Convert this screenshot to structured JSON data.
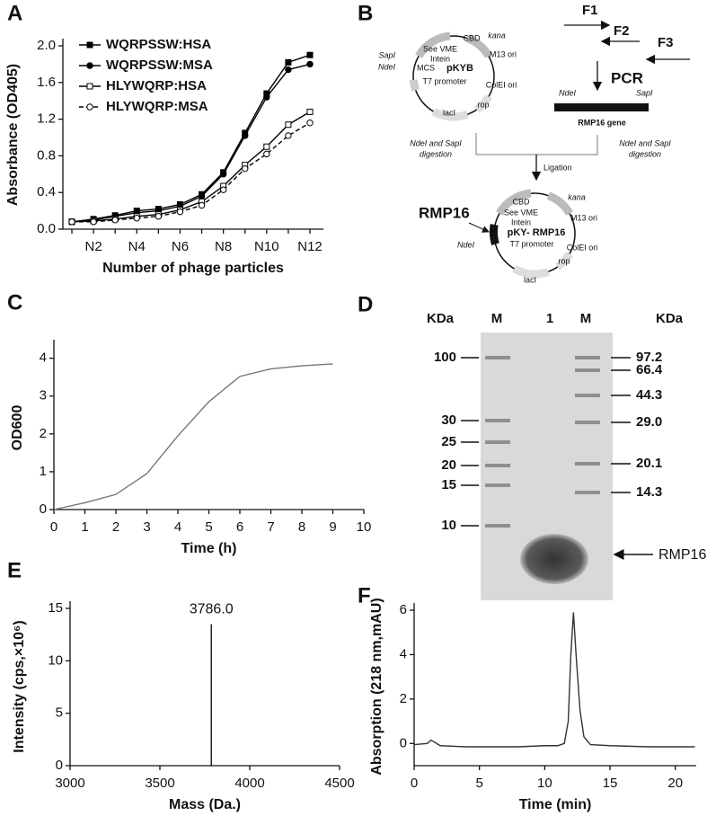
{
  "chart_data": [
    {
      "label": "A",
      "type": "line",
      "categories": [
        null,
        "N2",
        null,
        "N4",
        null,
        "N6",
        null,
        "N8",
        null,
        "N10",
        null,
        "N12"
      ],
      "series": [
        {
          "name": "WQRPSSW:HSA",
          "color": "#000000",
          "marker": "square",
          "filled": true,
          "dashed": false,
          "values": [
            0.08,
            0.11,
            0.15,
            0.2,
            0.22,
            0.27,
            0.38,
            0.62,
            1.05,
            1.48,
            1.82,
            1.9
          ]
        },
        {
          "name": "WQRPSSW:MSA",
          "color": "#000000",
          "marker": "circle",
          "filled": true,
          "dashed": false,
          "values": [
            0.08,
            0.1,
            0.14,
            0.18,
            0.2,
            0.25,
            0.36,
            0.6,
            1.02,
            1.44,
            1.74,
            1.8
          ]
        },
        {
          "name": "HLYWQRP:HSA",
          "color": "#000000",
          "marker": "square",
          "filled": false,
          "dashed": false,
          "values": [
            0.08,
            0.09,
            0.11,
            0.14,
            0.16,
            0.21,
            0.3,
            0.47,
            0.7,
            0.9,
            1.14,
            1.28
          ]
        },
        {
          "name": "HLYWQRP:MSA",
          "color": "#000000",
          "marker": "circle",
          "filled": false,
          "dashed": true,
          "values": [
            0.08,
            0.08,
            0.1,
            0.12,
            0.14,
            0.19,
            0.26,
            0.43,
            0.66,
            0.82,
            1.02,
            1.16
          ]
        }
      ],
      "ylim": [
        0,
        2
      ],
      "yticks": [
        {
          "value": 0,
          "label": "0.0"
        },
        0.4,
        0.8,
        1.2,
        1.6,
        {
          "value": 2,
          "label": "2.0"
        }
      ],
      "xlabel": "Number of phage particles",
      "ylabel": "Absorbance (OD405)",
      "legend": "upper left"
    },
    {
      "label": "C",
      "type": "line",
      "x": [
        0,
        1,
        2,
        3,
        4,
        5,
        6,
        7,
        8,
        9
      ],
      "values": [
        0,
        0.18,
        0.4,
        0.95,
        1.95,
        2.85,
        3.52,
        3.72,
        3.8,
        3.85
      ],
      "color": "#777777",
      "xlim": [
        0,
        10
      ],
      "xticks": [
        0,
        1,
        2,
        3,
        4,
        5,
        6,
        7,
        8,
        9,
        10
      ],
      "ylim": [
        0,
        4.3
      ],
      "yticks": [
        0,
        1,
        2,
        3,
        4
      ],
      "xlabel": "Time (h)",
      "ylabel": "OD600"
    },
    {
      "label": "E",
      "type": "spectrum",
      "x": [
        3786.0
      ],
      "values": [
        13.5
      ],
      "annotation": "3786.0",
      "color": "#000000",
      "xlim": [
        3000,
        4500
      ],
      "xticks": [
        3000,
        3500,
        4000,
        4500
      ],
      "ylim": [
        0,
        15
      ],
      "yticks": [
        0,
        5,
        10,
        15
      ],
      "xlabel": "Mass (Da.)",
      "ylabel": "Intensity (cps,×10⁶)"
    },
    {
      "label": "F",
      "type": "line",
      "x": [
        0,
        1,
        1.3,
        2,
        4,
        6,
        8,
        10,
        11,
        11.5,
        11.8,
        12,
        12.2,
        12.4,
        12.7,
        13,
        13.5,
        15,
        18,
        21.5
      ],
      "values": [
        -0.05,
        0,
        0.15,
        -0.1,
        -0.15,
        -0.15,
        -0.15,
        -0.1,
        -0.1,
        0,
        1,
        4,
        5.9,
        4,
        1.5,
        0.3,
        -0.05,
        -0.1,
        -0.15,
        -0.15
      ],
      "color": "#333333",
      "xlim": [
        0,
        21.6
      ],
      "xticks": [
        0,
        5,
        10,
        15,
        20
      ],
      "ylim": [
        -1,
        6
      ],
      "yticks": [
        0,
        2,
        4,
        6
      ],
      "xlabel": "Time (min)",
      "ylabel": "Absorption (218 nm,mAU)"
    }
  ],
  "diagram": {
    "label": "B",
    "vector": {
      "sites": [
        "SapI",
        "NdeI"
      ],
      "features": [
        "CBD",
        "See VME",
        "Intein",
        "kana",
        "M13 ori",
        "MCS",
        "pKYB",
        "T7 promoter",
        "ColEI ori",
        "lacI",
        "rop"
      ]
    },
    "primers": [
      "F1",
      "F2",
      "F3"
    ],
    "pcr": "PCR",
    "gene": {
      "left": "NdeI",
      "right": "SapI",
      "name": "RMP16 gene"
    },
    "digestion_left": [
      "NdeI and SapI",
      "digestion"
    ],
    "digestion_right": [
      "NdeI and SapI",
      "digestion"
    ],
    "ligation": "Ligation",
    "product": {
      "insert": "RMP16",
      "site": "NdeI",
      "features": [
        "CBD",
        "See VME",
        "Intein",
        "kana",
        "M13 ori",
        "pKY- RMP16",
        "T7 promoter",
        "ColEI ori",
        "lacI",
        "rop"
      ]
    }
  },
  "gel": {
    "label": "D",
    "header": [
      "KDa",
      "M",
      "1",
      "M",
      "KDa"
    ],
    "left_markers": [
      "100",
      "30",
      "25",
      "20",
      "15",
      "10"
    ],
    "right_markers": [
      "97.2",
      "66.4",
      "44.3",
      "29.0",
      "20.1",
      "14.3"
    ],
    "band": "RMP16"
  }
}
